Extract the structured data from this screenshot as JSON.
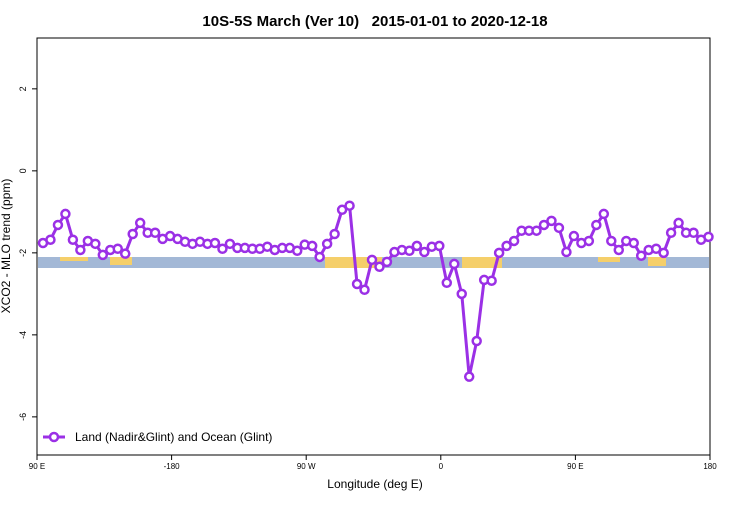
{
  "chart_data": {
    "type": "line",
    "title": "10S-5S March (Ver 10)   2015-01-01 to 2020-12-18",
    "x_label": "Longitude (deg E)",
    "y_label": "XCO2 - MLO trend (ppm)",
    "x": [
      -266,
      -261,
      -256,
      -251,
      -246,
      -241,
      -236,
      -231,
      -226,
      -221,
      -216,
      -211,
      -206,
      -201,
      -196,
      -191,
      -186,
      -181,
      -176,
      -171,
      -166,
      -161,
      -156,
      -151,
      -146,
      -141,
      -136,
      -131,
      -126,
      -121,
      -116,
      -111,
      -106,
      -101,
      -96,
      -91,
      -86,
      -81,
      -76,
      -71,
      -66,
      -61,
      -56,
      -51,
      -46,
      -41,
      -36,
      -31,
      -26,
      -21,
      -16,
      -11,
      -6,
      -1,
      4,
      9,
      14,
      19,
      24,
      29,
      34,
      39,
      44,
      49,
      54,
      59,
      64,
      69,
      74,
      79,
      84,
      89,
      94,
      99,
      104,
      109,
      114,
      119,
      124,
      129,
      134,
      139,
      144,
      149,
      154,
      159,
      164,
      169,
      174,
      179
    ],
    "series": [
      {
        "name": "Land (Nadir&Glint) and Ocean (Glint)",
        "color": "#9b30e6",
        "values": [
          -1.76,
          -1.68,
          -1.32,
          -1.05,
          -1.68,
          -1.93,
          -1.71,
          -1.78,
          -2.05,
          -1.93,
          -1.9,
          -2.02,
          -1.54,
          -1.27,
          -1.51,
          -1.51,
          -1.66,
          -1.59,
          -1.66,
          -1.73,
          -1.78,
          -1.73,
          -1.78,
          -1.76,
          -1.9,
          -1.78,
          -1.88,
          -1.88,
          -1.9,
          -1.9,
          -1.85,
          -1.93,
          -1.88,
          -1.88,
          -1.95,
          -1.8,
          -1.83,
          -2.1,
          -1.78,
          -1.54,
          -0.95,
          -0.85,
          -2.76,
          -2.9,
          -2.17,
          -2.34,
          -2.22,
          -1.98,
          -1.93,
          -1.95,
          -1.83,
          -1.98,
          -1.85,
          -1.83,
          -2.73,
          -2.27,
          -3.0,
          -5.02,
          -4.15,
          -2.66,
          -2.68,
          -2.0,
          -1.83,
          -1.71,
          -1.46,
          -1.46,
          -1.46,
          -1.32,
          -1.22,
          -1.39,
          -1.98,
          -1.59,
          -1.76,
          -1.71,
          -1.32,
          -1.05,
          -1.71,
          -1.93,
          -1.71,
          -1.76,
          -2.07,
          -1.93,
          -1.9,
          -2.0,
          -1.51,
          -1.27,
          -1.51,
          -1.51,
          -1.68,
          -1.61
        ]
      }
    ],
    "xlim": [
      -270,
      180
    ],
    "xticks": [
      {
        "value": -270,
        "label": "90 E"
      },
      -180,
      {
        "value": -90,
        "label": "90 W"
      },
      0,
      {
        "value": 90,
        "label": "90 E"
      },
      180
    ],
    "ylim": [
      -6.93,
      3.24
    ],
    "yticks": [
      2,
      0,
      -2,
      -4,
      -6
    ],
    "legend": "bottom-left"
  }
}
